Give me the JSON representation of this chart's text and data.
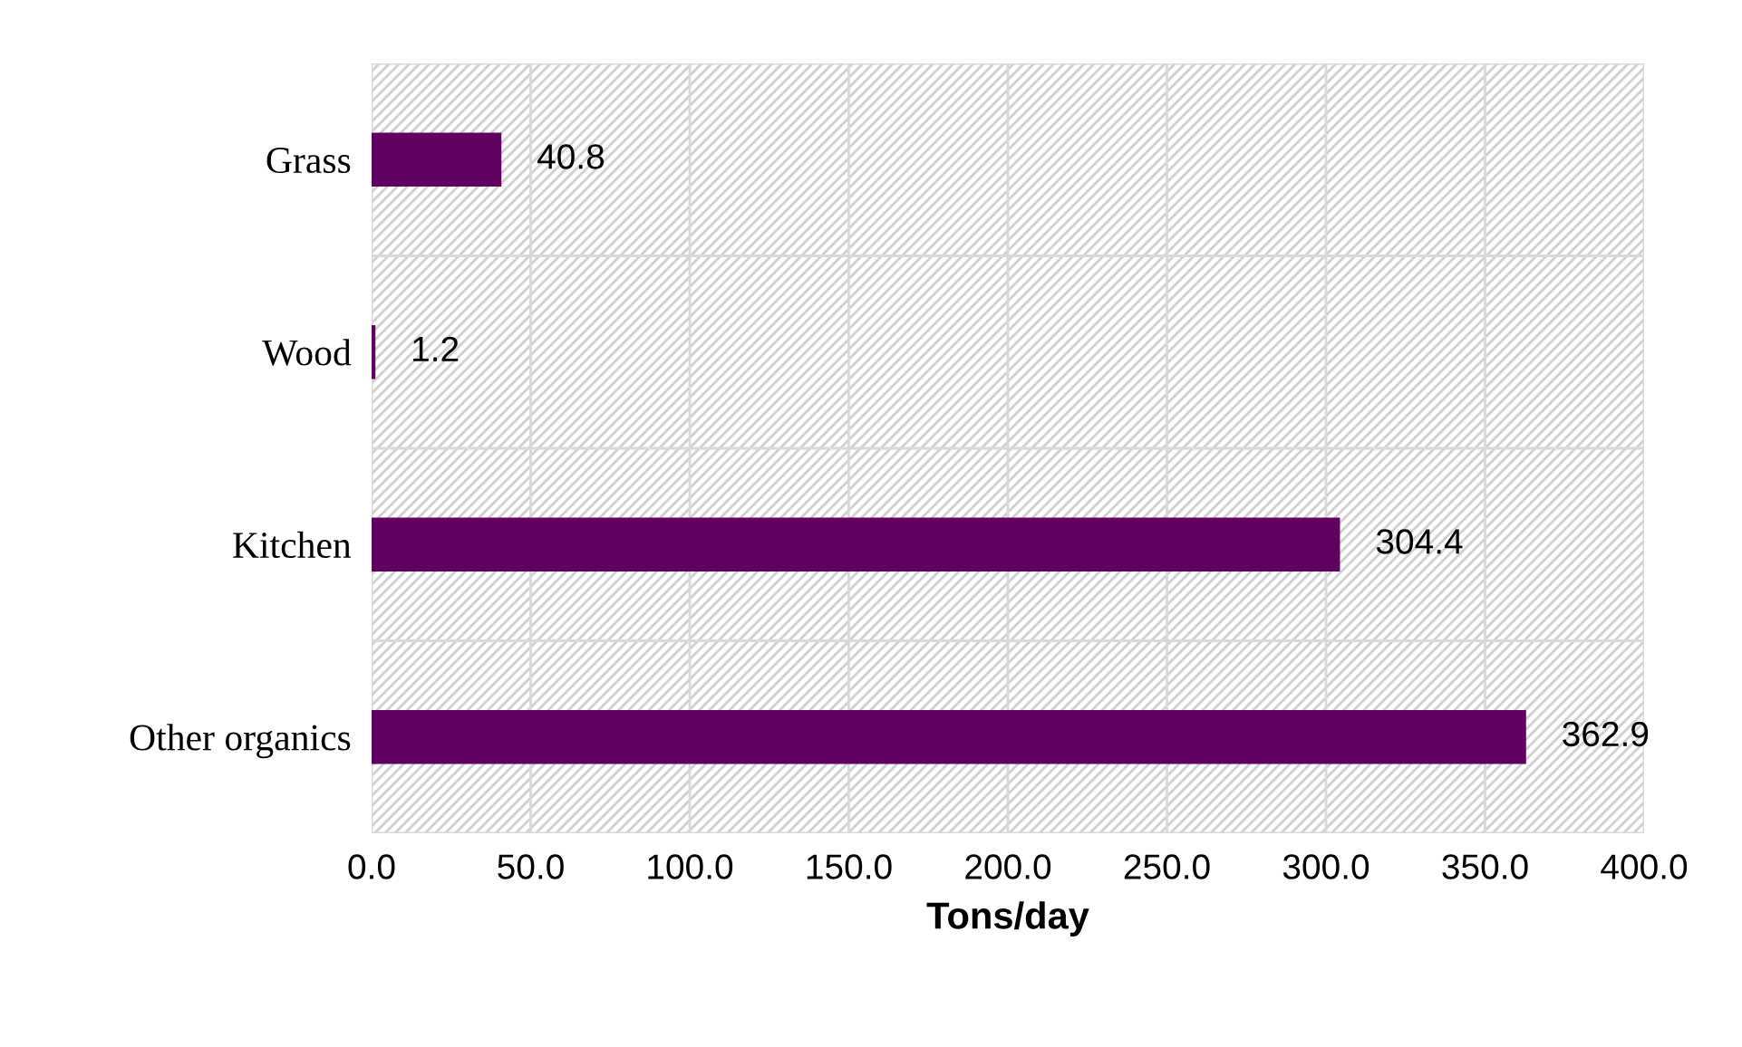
{
  "chart_data": {
    "type": "bar",
    "orientation": "horizontal",
    "xlabel": "Tons/day",
    "categories": [
      "Grass",
      "Wood",
      "Kitchen",
      "Other organics"
    ],
    "values": [
      40.8,
      1.2,
      304.4,
      362.9
    ],
    "color": "#600060",
    "xlim": [
      0,
      400
    ],
    "xticks": [
      {
        "value": 0,
        "label": "0.0"
      },
      {
        "value": 50,
        "label": "50.0"
      },
      {
        "value": 100,
        "label": "100.0"
      },
      {
        "value": 150,
        "label": "150.0"
      },
      {
        "value": 200,
        "label": "200.0"
      },
      {
        "value": 250,
        "label": "250.0"
      },
      {
        "value": 300,
        "label": "300.0"
      },
      {
        "value": 350,
        "label": "350.0"
      },
      {
        "value": 400,
        "label": "400.0"
      }
    ],
    "grid": true,
    "data_labels": true
  }
}
